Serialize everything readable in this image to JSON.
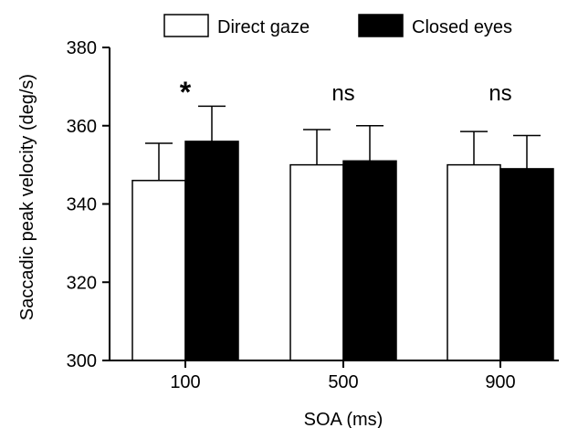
{
  "chart_data": {
    "type": "bar",
    "categories": [
      "100",
      "500",
      "900"
    ],
    "series": [
      {
        "name": "Direct gaze",
        "values": [
          346,
          350,
          350
        ],
        "error": [
          9.5,
          9,
          8.5
        ],
        "fill": "#ffffff"
      },
      {
        "name": "Closed eyes",
        "values": [
          356,
          351,
          349
        ],
        "error": [
          9,
          9,
          8.5
        ],
        "fill": "#000000"
      }
    ],
    "annotations": [
      "*",
      "ns",
      "ns"
    ],
    "xlabel": "SOA (ms)",
    "ylabel": "Saccadic peak velocity (deg/s)",
    "ylim": [
      300,
      380
    ],
    "yticks": [
      300,
      320,
      340,
      360,
      380
    ],
    "grid": false,
    "legend_position": "top"
  }
}
